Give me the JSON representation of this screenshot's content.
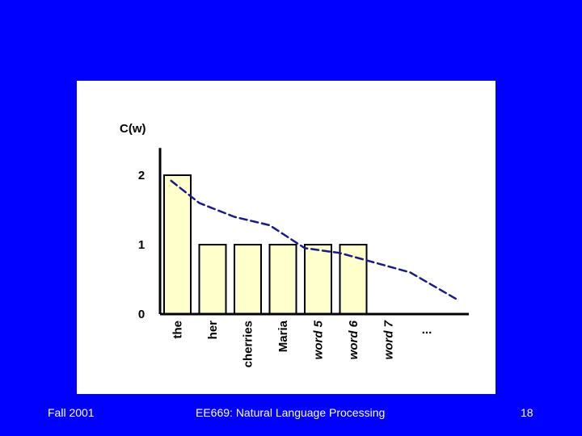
{
  "slide": {
    "background_color": "#0000ff",
    "footer_left": "Fall 2001",
    "footer_center": "EE669: Natural Language Processing",
    "page_number": "18"
  },
  "chart_data": {
    "type": "bar",
    "ylabel": "C(w)",
    "y_ticks": [
      "0",
      "1",
      "2"
    ],
    "ylim": [
      0,
      2.3
    ],
    "categories": [
      "the",
      "her",
      "cherries",
      "Maria",
      "word 5",
      "word 6",
      "word 7"
    ],
    "values": [
      2,
      1,
      1,
      1,
      1,
      1,
      0
    ],
    "ellipsis": "...",
    "bar_fill": "#ffffcc",
    "bar_stroke": "#000000",
    "trend": {
      "style": "dashed",
      "color": "#1a1a8c",
      "x": [
        0.2,
        1,
        2,
        3,
        4,
        5,
        6,
        7,
        8.3
      ],
      "y": [
        1.92,
        1.6,
        1.4,
        1.28,
        0.95,
        0.88,
        0.74,
        0.6,
        0.22
      ]
    }
  }
}
